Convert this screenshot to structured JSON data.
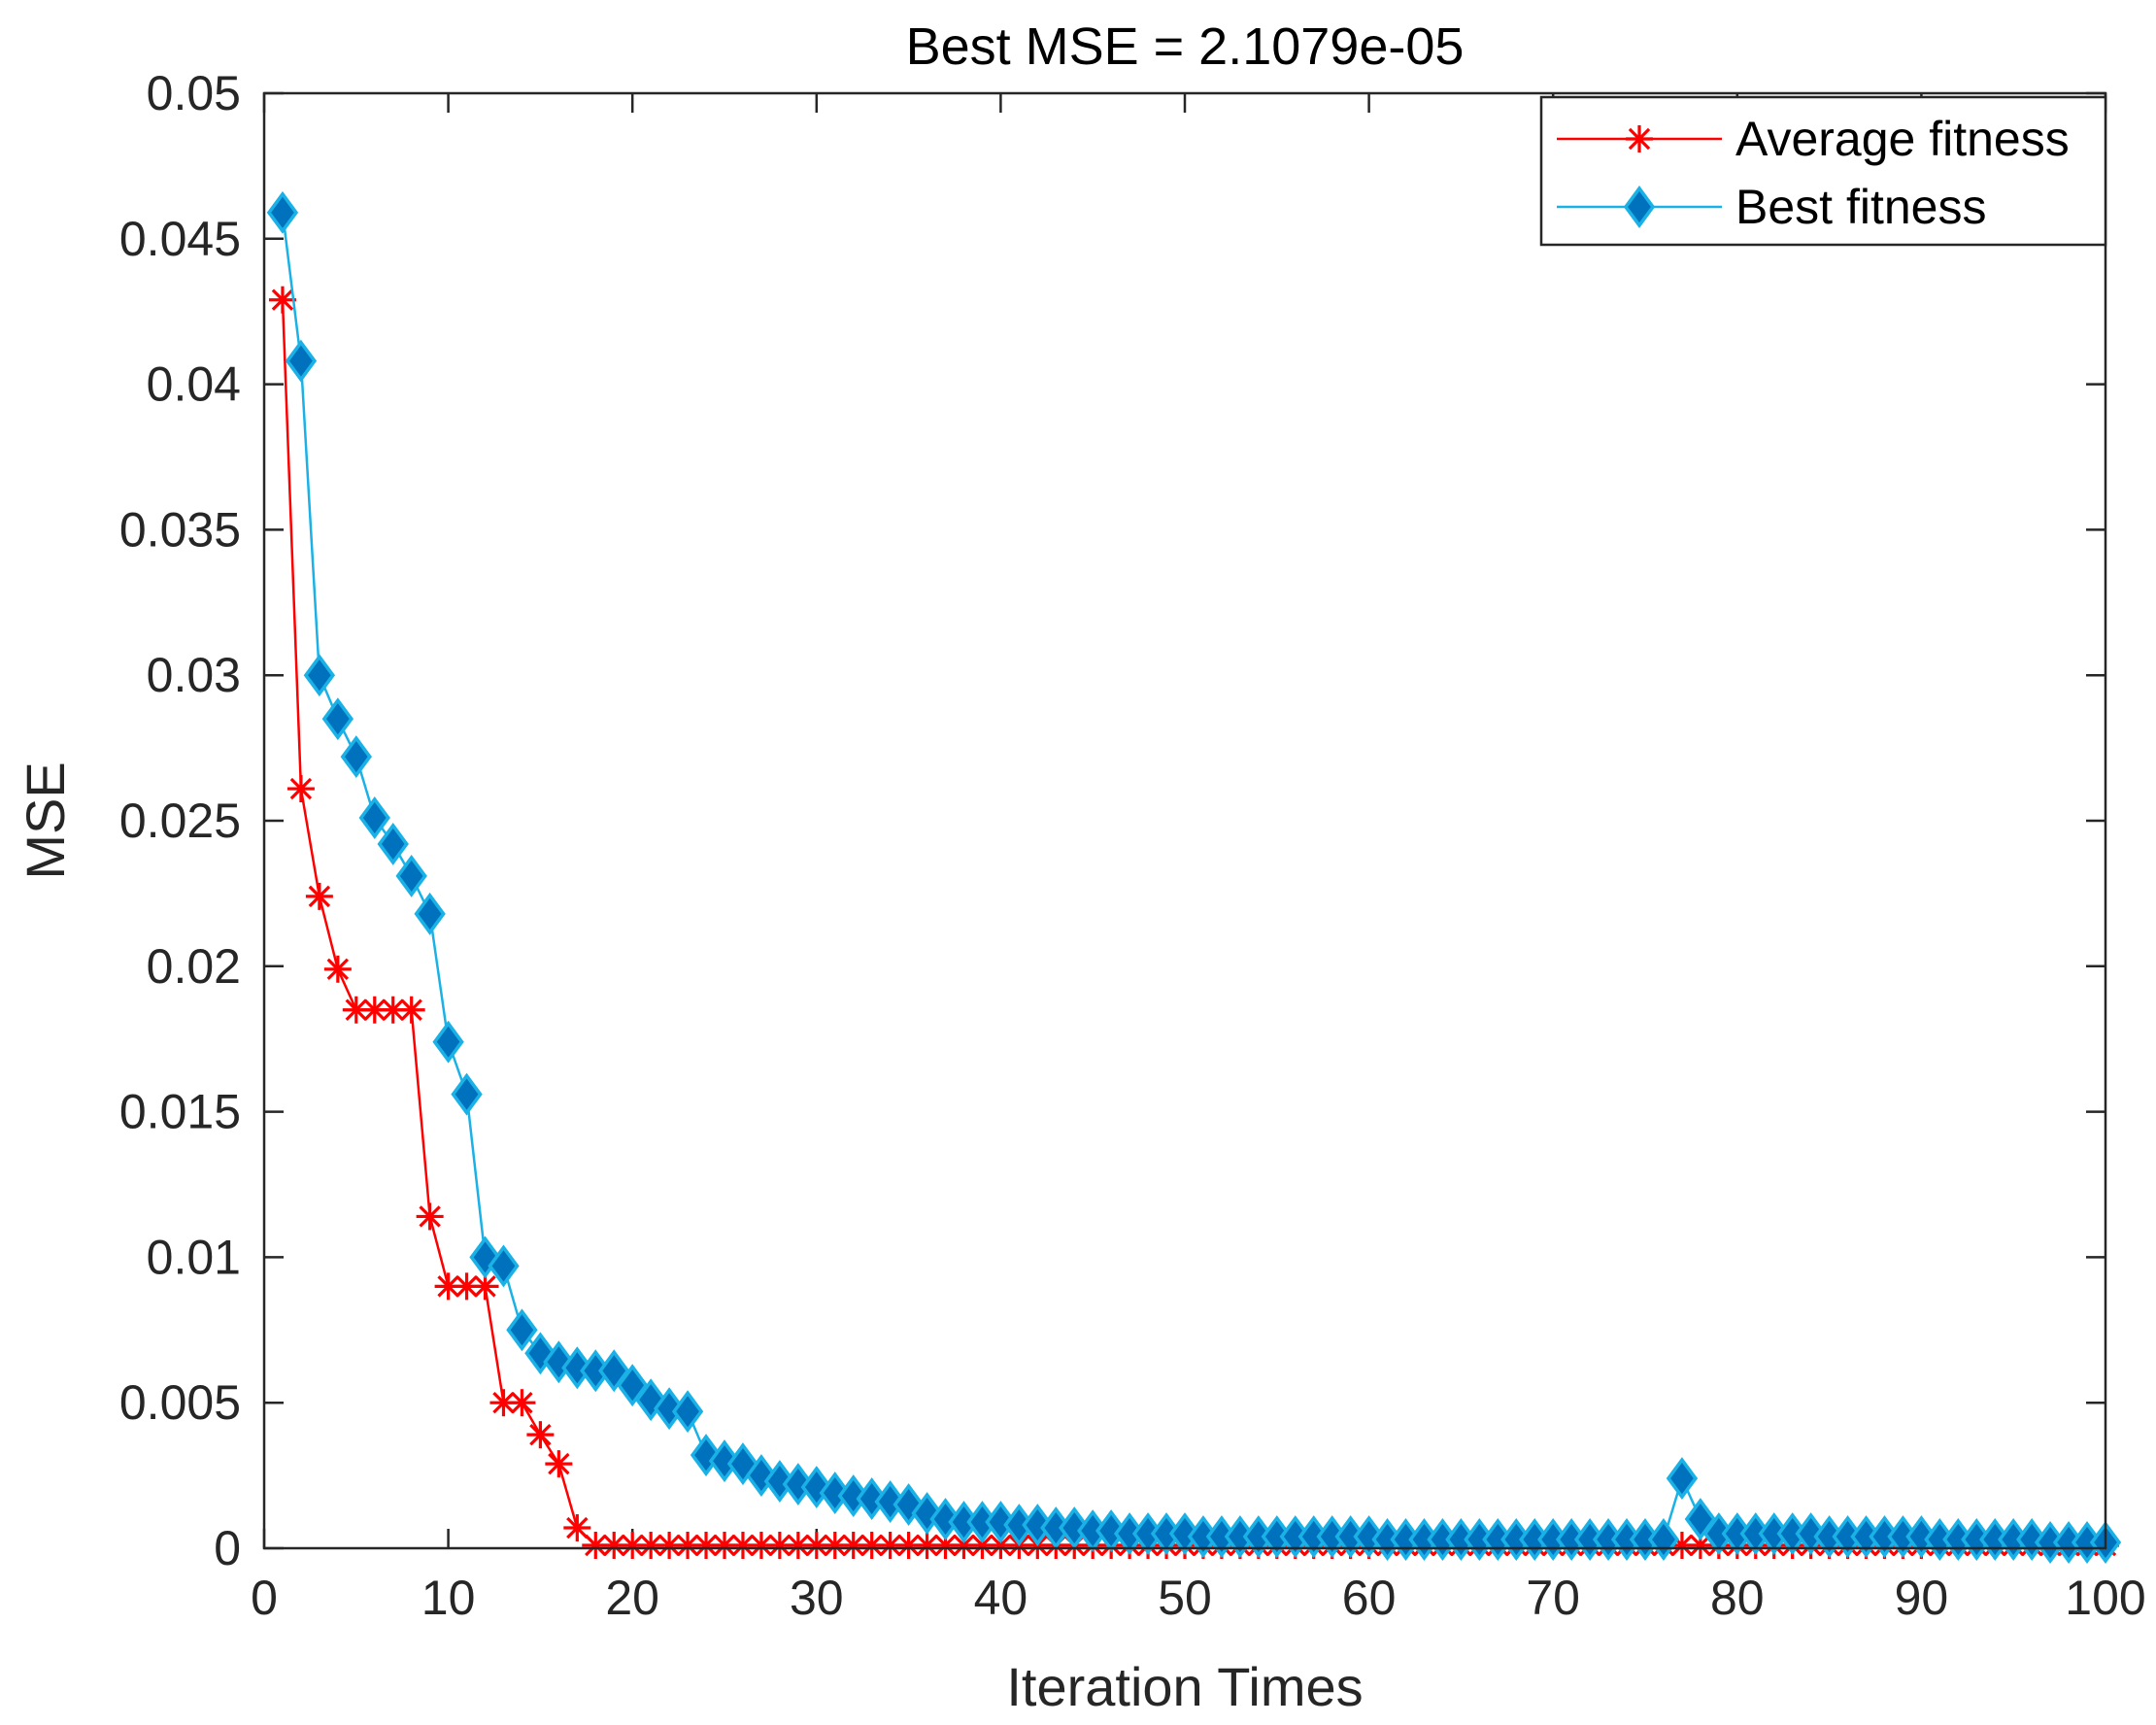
{
  "chart_data": {
    "type": "line",
    "title": "Best MSE = 2.1079e-05",
    "xlabel": "Iteration Times",
    "ylabel": "MSE",
    "xlim": [
      0,
      100
    ],
    "ylim": [
      0,
      0.05
    ],
    "x_ticks": [
      0,
      10,
      20,
      30,
      40,
      50,
      60,
      70,
      80,
      90,
      100
    ],
    "y_ticks": [
      0,
      0.005,
      0.01,
      0.015,
      0.02,
      0.025,
      0.03,
      0.035,
      0.04,
      0.045,
      0.05
    ],
    "x_tick_labels": [
      "0",
      "10",
      "20",
      "30",
      "40",
      "50",
      "60",
      "70",
      "80",
      "90",
      "100"
    ],
    "y_tick_labels": [
      "0",
      "0.005",
      "0.01",
      "0.015",
      "0.02",
      "0.025",
      "0.03",
      "0.035",
      "0.04",
      "0.045",
      "0.05"
    ],
    "legend_position": "top-right",
    "grid": false,
    "series": [
      {
        "name": "Average fitness",
        "color": "#ff0000",
        "marker": "asterisk",
        "x": [
          1,
          2,
          3,
          4,
          5,
          6,
          7,
          8,
          9,
          10,
          11,
          12,
          13,
          14,
          15,
          16,
          17,
          18,
          19,
          20,
          21,
          22,
          23,
          24,
          25,
          26,
          27,
          28,
          29,
          30,
          31,
          32,
          33,
          34,
          35,
          36,
          37,
          38,
          39,
          40,
          41,
          42,
          43,
          44,
          45,
          46,
          47,
          48,
          49,
          50,
          51,
          52,
          53,
          54,
          55,
          56,
          57,
          58,
          59,
          60,
          61,
          62,
          63,
          64,
          65,
          66,
          67,
          68,
          69,
          70,
          71,
          72,
          73,
          74,
          75,
          76,
          77,
          78,
          79,
          80,
          81,
          82,
          83,
          84,
          85,
          86,
          87,
          88,
          89,
          90,
          91,
          92,
          93,
          94,
          95,
          96,
          97,
          98,
          99,
          100
        ],
        "values": [
          0.0429,
          0.0261,
          0.0224,
          0.0199,
          0.0185,
          0.0185,
          0.0185,
          0.0185,
          0.0114,
          0.009,
          0.009,
          0.009,
          0.005,
          0.005,
          0.0039,
          0.0029,
          0.0007,
          0.0001,
          0.0001,
          0.0001,
          0.0001,
          0.0001,
          0.0001,
          0.0001,
          0.0001,
          0.0001,
          0.0001,
          0.0001,
          0.0001,
          0.0001,
          0.0001,
          0.0001,
          0.0001,
          0.0001,
          0.0001,
          0.0001,
          0.0001,
          0.0001,
          0.0001,
          0.0001,
          0.0001,
          0.0001,
          0.0001,
          0.0001,
          0.0001,
          0.0001,
          0.0001,
          0.0001,
          0.0001,
          0.0001,
          0.0001,
          0.0001,
          0.0001,
          0.0001,
          0.0001,
          0.0001,
          0.0001,
          0.0001,
          0.0001,
          0.0001,
          0.0001,
          0.0001,
          0.0001,
          0.0001,
          0.0001,
          0.0001,
          0.0001,
          0.0001,
          0.0001,
          0.0001,
          0.0001,
          0.0001,
          0.0001,
          0.0001,
          0.0001,
          0.0001,
          0.0001,
          0.0001,
          0.0001,
          0.0001,
          0.0001,
          0.0001,
          0.0001,
          0.0001,
          0.0001,
          0.0001,
          0.0001,
          0.0001,
          0.0001,
          0.0001,
          0.0001,
          0.0001,
          0.0001,
          0.0001,
          0.0001,
          0.0001,
          0.0001,
          0.0001,
          0.0001,
          0.0001
        ]
      },
      {
        "name": "Best fitness",
        "color": "#1ab2e6",
        "fill": "#0072bd",
        "marker": "diamond",
        "x": [
          1,
          2,
          3,
          4,
          5,
          6,
          7,
          8,
          9,
          10,
          11,
          12,
          13,
          14,
          15,
          16,
          17,
          18,
          19,
          20,
          21,
          22,
          23,
          24,
          25,
          26,
          27,
          28,
          29,
          30,
          31,
          32,
          33,
          34,
          35,
          36,
          37,
          38,
          39,
          40,
          41,
          42,
          43,
          44,
          45,
          46,
          47,
          48,
          49,
          50,
          51,
          52,
          53,
          54,
          55,
          56,
          57,
          58,
          59,
          60,
          61,
          62,
          63,
          64,
          65,
          66,
          67,
          68,
          69,
          70,
          71,
          72,
          73,
          74,
          75,
          76,
          77,
          78,
          79,
          80,
          81,
          82,
          83,
          84,
          85,
          86,
          87,
          88,
          89,
          90,
          91,
          92,
          93,
          94,
          95,
          96,
          97,
          98,
          99,
          100
        ],
        "values": [
          0.0459,
          0.0408,
          0.03,
          0.0285,
          0.0272,
          0.0251,
          0.0242,
          0.0231,
          0.0218,
          0.0174,
          0.0156,
          0.01,
          0.0097,
          0.0075,
          0.0067,
          0.0064,
          0.0062,
          0.0061,
          0.0061,
          0.0056,
          0.0051,
          0.0048,
          0.0047,
          0.0032,
          0.003,
          0.0029,
          0.0025,
          0.0023,
          0.0022,
          0.0021,
          0.0019,
          0.0018,
          0.0017,
          0.0016,
          0.0015,
          0.0012,
          0.001,
          0.0009,
          0.0009,
          0.0009,
          0.0008,
          0.0008,
          0.0007,
          0.0007,
          0.0006,
          0.0006,
          0.0005,
          0.0005,
          0.0005,
          0.0005,
          0.0004,
          0.0004,
          0.0004,
          0.0004,
          0.0004,
          0.0004,
          0.0004,
          0.0004,
          0.0004,
          0.0004,
          0.0003,
          0.0003,
          0.0003,
          0.0003,
          0.0003,
          0.0003,
          0.0003,
          0.0003,
          0.0003,
          0.0003,
          0.0003,
          0.0003,
          0.0003,
          0.0003,
          0.0003,
          0.0003,
          0.0024,
          0.001,
          0.0005,
          0.0005,
          0.0005,
          0.0005,
          0.0005,
          0.0005,
          0.0004,
          0.0004,
          0.0004,
          0.0004,
          0.0004,
          0.0004,
          0.0003,
          0.0003,
          0.0003,
          0.0003,
          0.0003,
          0.0003,
          0.0002,
          0.0002,
          0.0002,
          0.0002
        ]
      }
    ]
  }
}
